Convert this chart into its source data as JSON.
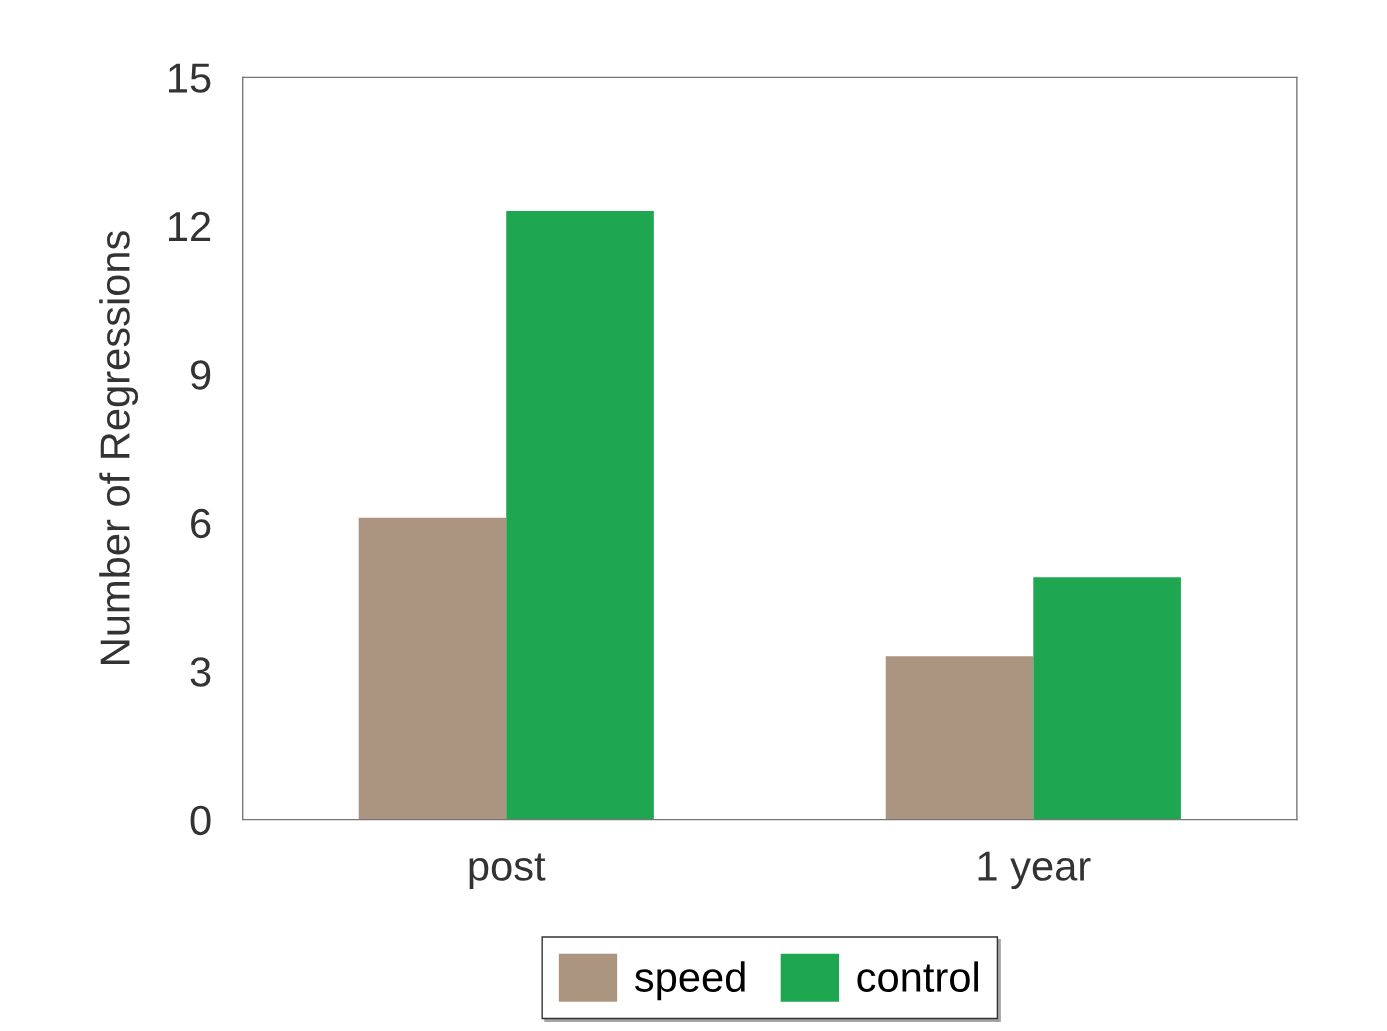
{
  "chart_data": {
    "type": "bar",
    "ylabel": "Number of Regressions",
    "categories": [
      "post",
      "1 year"
    ],
    "series": [
      {
        "name": "speed",
        "color": "#ab9580",
        "values": [
          6.1,
          3.3
        ]
      },
      {
        "name": "control",
        "color": "#1ea650",
        "values": [
          12.3,
          4.9
        ]
      }
    ],
    "ylim": [
      0,
      15
    ],
    "yticks": [
      0,
      3,
      6,
      9,
      12,
      15
    ],
    "grid": false,
    "legend": "bottom"
  }
}
